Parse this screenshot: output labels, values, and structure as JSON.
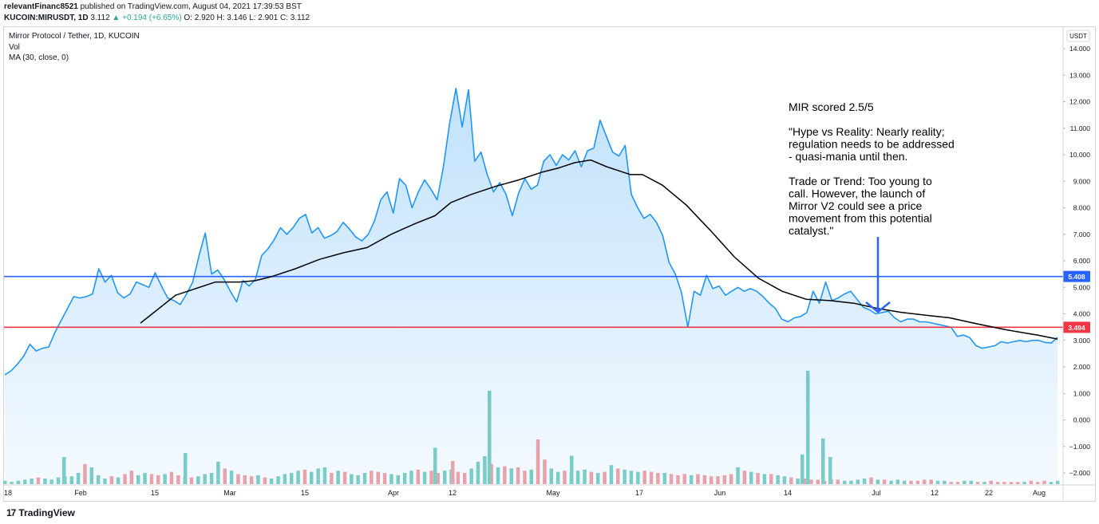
{
  "header": {
    "author": "relevantFinanc8521",
    "published": "published on TradingView.com, August 04, 2021 17:39:53 BST",
    "symbol": "KUCOIN:MIRUSDT, 1D",
    "last": "3.112",
    "change": "▲ +0.194 (+6.65%)",
    "ohlc": "O: 2.920  H: 3.146  L: 2.901  C: 3.112"
  },
  "legend": {
    "title": "Mirror Protocol / Tether, 1D, KUCOIN",
    "vol": "Vol",
    "ma": "MA (30, close, 0)"
  },
  "footer": {
    "logo": "17",
    "brand": "TradingView"
  },
  "chart_data": {
    "type": "area",
    "currency": "USDT",
    "y_ticks": [
      "14.000",
      "13.000",
      "12.000",
      "11.000",
      "10.000",
      "9.000",
      "8.000",
      "7.000",
      "6.000",
      "5.000",
      "4.000",
      "3.000",
      "2.000",
      "1.000",
      "0.000",
      "−1.000",
      "−2.000"
    ],
    "ylim": [
      -2.5,
      14.5
    ],
    "x_ticks": [
      "18",
      "Feb",
      "15",
      "Mar",
      "15",
      "Apr",
      "12",
      "May",
      "17",
      "Jun",
      "14",
      "Jul",
      "12",
      "22",
      "Aug"
    ],
    "price": [
      1.7,
      1.85,
      2.1,
      2.4,
      2.85,
      2.6,
      2.7,
      2.75,
      3.3,
      3.75,
      4.2,
      4.65,
      4.6,
      4.65,
      4.75,
      5.7,
      5.2,
      5.45,
      4.8,
      4.6,
      4.75,
      5.2,
      5.1,
      5.0,
      5.55,
      5.05,
      4.6,
      4.5,
      4.35,
      4.75,
      5.2,
      6.2,
      7.05,
      5.5,
      5.65,
      5.3,
      4.85,
      4.45,
      5.25,
      5.05,
      5.3,
      6.2,
      6.45,
      6.8,
      7.25,
      7.0,
      7.25,
      7.6,
      7.75,
      7.05,
      7.25,
      6.85,
      6.95,
      7.1,
      7.45,
      7.2,
      6.9,
      6.75,
      7.0,
      7.5,
      8.3,
      8.6,
      7.8,
      9.1,
      8.85,
      8.0,
      8.6,
      9.05,
      8.7,
      8.3,
      9.55,
      11.2,
      12.5,
      11.05,
      12.45,
      9.75,
      10.1,
      9.25,
      8.6,
      8.95,
      8.5,
      7.7,
      8.55,
      9.1,
      8.7,
      8.85,
      9.75,
      10.0,
      9.6,
      10.0,
      9.8,
      10.15,
      9.55,
      10.15,
      10.25,
      11.3,
      10.7,
      10.1,
      9.95,
      10.35,
      8.5,
      8.0,
      7.6,
      7.75,
      7.45,
      6.95,
      5.95,
      5.5,
      4.8,
      3.5,
      4.85,
      4.7,
      5.45,
      4.95,
      5.05,
      4.7,
      4.85,
      5.0,
      4.85,
      4.95,
      4.85,
      4.65,
      4.4,
      4.2,
      3.8,
      3.7,
      3.85,
      3.9,
      4.05,
      4.85,
      4.4,
      5.2,
      4.5,
      4.6,
      4.75,
      4.85,
      4.55,
      4.25,
      4.15,
      4.0,
      4.05,
      4.1,
      3.85,
      3.7,
      3.8,
      3.8,
      3.7,
      3.7,
      3.65,
      3.6,
      3.55,
      3.5,
      3.15,
      3.2,
      3.1,
      2.8,
      2.7,
      2.75,
      2.8,
      2.95,
      2.9,
      2.95,
      3.0,
      2.95,
      3.0,
      3.0,
      2.92,
      2.9,
      3.112
    ],
    "price_x": [
      1.0,
      0.51
    ],
    "ma": [
      [
        176,
        3.65
      ],
      [
        220,
        4.7
      ],
      [
        240,
        4.9
      ],
      [
        270,
        5.2
      ],
      [
        300,
        5.2
      ],
      [
        320,
        5.25
      ],
      [
        340,
        5.4
      ],
      [
        370,
        5.7
      ],
      [
        400,
        6.05
      ],
      [
        430,
        6.3
      ],
      [
        460,
        6.5
      ],
      [
        490,
        7.0
      ],
      [
        520,
        7.4
      ],
      [
        545,
        7.7
      ],
      [
        565,
        8.2
      ],
      [
        590,
        8.5
      ],
      [
        620,
        8.8
      ],
      [
        650,
        9.05
      ],
      [
        680,
        9.35
      ],
      [
        700,
        9.5
      ],
      [
        720,
        9.7
      ],
      [
        740,
        9.8
      ],
      [
        760,
        9.55
      ],
      [
        790,
        9.25
      ],
      [
        805,
        9.25
      ],
      [
        830,
        8.85
      ],
      [
        860,
        8.1
      ],
      [
        890,
        7.15
      ],
      [
        920,
        6.15
      ],
      [
        950,
        5.35
      ],
      [
        980,
        4.85
      ],
      [
        1010,
        4.55
      ],
      [
        1040,
        4.5
      ],
      [
        1070,
        4.4
      ],
      [
        1100,
        4.2
      ],
      [
        1130,
        4.05
      ],
      [
        1160,
        3.95
      ],
      [
        1190,
        3.85
      ],
      [
        1220,
        3.65
      ],
      [
        1260,
        3.4
      ],
      [
        1300,
        3.2
      ],
      [
        1325,
        3.05
      ]
    ],
    "volume": [
      3,
      2,
      3,
      4,
      5,
      6,
      5,
      4,
      6,
      7,
      7,
      10,
      18,
      15,
      8,
      5,
      7,
      6,
      9,
      12,
      8,
      10,
      9,
      8,
      9,
      11,
      8,
      7,
      6,
      7,
      9,
      10,
      20,
      14,
      12,
      9,
      8,
      7,
      8,
      6,
      5,
      7,
      9,
      10,
      12,
      13,
      11,
      14,
      15,
      10,
      12,
      11,
      9,
      8,
      10,
      12,
      11,
      10,
      9,
      8,
      10,
      12,
      13,
      11,
      12,
      10,
      12,
      13,
      11,
      10,
      14,
      20,
      25,
      18,
      15,
      16,
      14,
      15,
      12,
      13,
      40,
      22,
      14,
      11,
      12,
      10,
      12,
      13,
      11,
      10,
      11,
      17,
      14,
      13,
      12,
      11,
      12,
      11,
      10,
      10,
      9,
      8,
      9,
      8,
      9,
      8,
      7,
      7,
      8,
      9,
      15,
      12,
      11,
      10,
      9,
      9,
      8,
      7,
      6,
      5,
      5,
      4,
      4,
      3,
      4,
      4,
      3,
      3,
      4,
      5,
      6,
      4,
      4,
      3,
      4,
      3,
      3,
      3,
      4,
      4,
      3,
      3,
      2,
      2,
      3,
      3,
      2,
      2,
      3,
      2,
      2,
      2,
      2,
      2,
      3,
      2,
      3,
      2,
      3
    ],
    "vol_spikes": [
      [
        613,
        "up",
        1.1
      ],
      [
        1012,
        "up",
        1.85
      ],
      [
        1031,
        "up",
        -0.7
      ],
      [
        1005,
        "up",
        -1.3
      ],
      [
        1040,
        "up",
        -1.4
      ],
      [
        545,
        "up",
        -1.05
      ],
      [
        567,
        "down",
        -1.55
      ],
      [
        716,
        "up",
        -1.35
      ],
      [
        232,
        "up",
        -1.25
      ],
      [
        80,
        "up",
        -1.4
      ]
    ],
    "levels": [
      {
        "label": "5.408",
        "value": 5.408,
        "color": "#2962ff"
      },
      {
        "label": "3.494",
        "value": 3.494,
        "color": "#f23645"
      }
    ],
    "annotation": [
      "MIR scored 2.5/5",
      "",
      "\"Hype vs Reality: Nearly reality;",
      "regulation needs to be addressed",
      "- quasi-mania until then.",
      "",
      "Trade or Trend: Too young to",
      "call. However, the launch of",
      "Mirror V2 could see a price",
      "movement from this potential",
      "catalyst.\""
    ]
  }
}
